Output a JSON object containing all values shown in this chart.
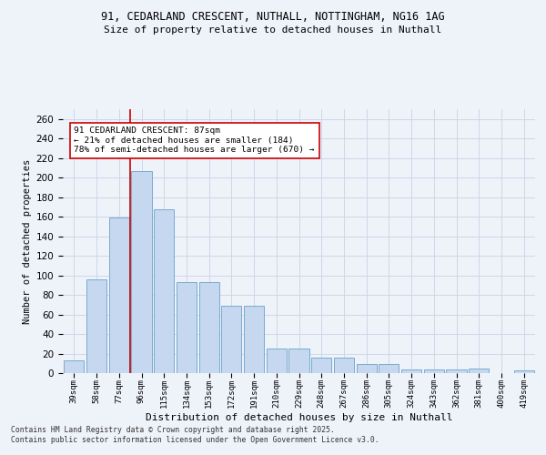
{
  "title_line1": "91, CEDARLAND CRESCENT, NUTHALL, NOTTINGHAM, NG16 1AG",
  "title_line2": "Size of property relative to detached houses in Nuthall",
  "xlabel": "Distribution of detached houses by size in Nuthall",
  "ylabel": "Number of detached properties",
  "categories": [
    "39sqm",
    "58sqm",
    "77sqm",
    "96sqm",
    "115sqm",
    "134sqm",
    "153sqm",
    "172sqm",
    "191sqm",
    "210sqm",
    "229sqm",
    "248sqm",
    "267sqm",
    "286sqm",
    "305sqm",
    "324sqm",
    "343sqm",
    "362sqm",
    "381sqm",
    "400sqm",
    "419sqm"
  ],
  "values": [
    13,
    96,
    159,
    207,
    168,
    93,
    93,
    69,
    69,
    25,
    25,
    16,
    16,
    9,
    9,
    4,
    4,
    4,
    5,
    0,
    3
  ],
  "bar_color": "#c5d8ef",
  "bar_edge_color": "#7aabcf",
  "vline_x": 2.5,
  "vline_color": "#cc0000",
  "annotation_title": "91 CEDARLAND CRESCENT: 87sqm",
  "annotation_line1": "← 21% of detached houses are smaller (184)",
  "annotation_line2": "78% of semi-detached houses are larger (670) →",
  "annotation_box_color": "#ffffff",
  "annotation_box_edge": "#cc0000",
  "ylim": [
    0,
    270
  ],
  "yticks": [
    0,
    20,
    40,
    60,
    80,
    100,
    120,
    140,
    160,
    180,
    200,
    220,
    240,
    260
  ],
  "footer_line1": "Contains HM Land Registry data © Crown copyright and database right 2025.",
  "footer_line2": "Contains public sector information licensed under the Open Government Licence v3.0.",
  "bg_color": "#eef2f9",
  "grid_color": "#c8d4e8"
}
